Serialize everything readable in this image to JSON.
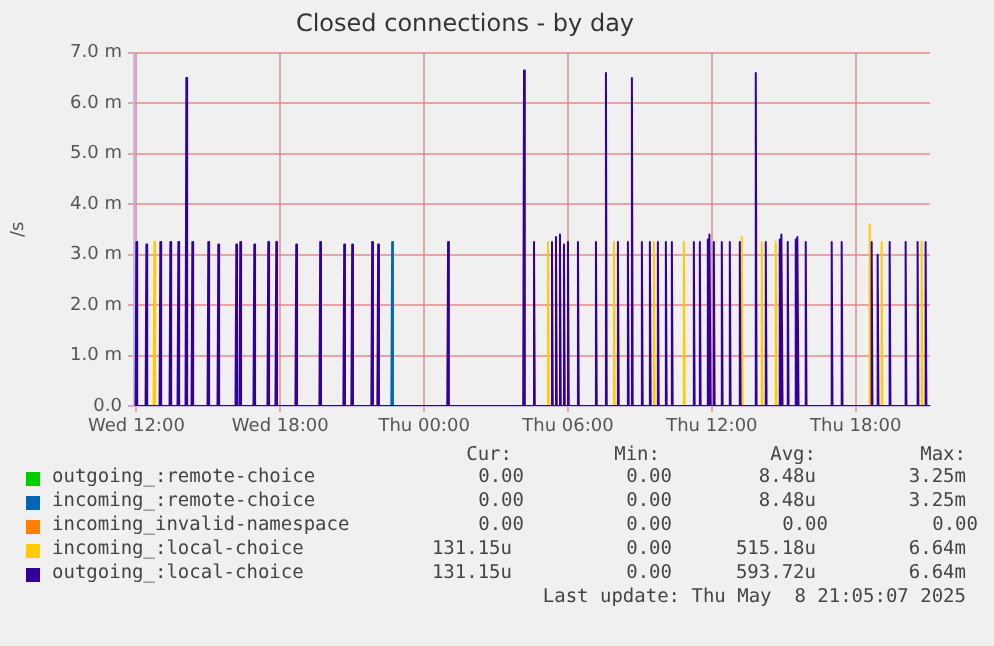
{
  "chart_data": {
    "type": "line",
    "title": "Closed connections - by day",
    "ylabel": "/s",
    "xlim": [
      "2025-05-07T11:54",
      "2025-05-08T21:06"
    ],
    "xticks": [
      {
        "value": "2025-05-07T12:00",
        "label": "Wed 12:00"
      },
      {
        "value": "2025-05-07T18:00",
        "label": "Wed 18:00"
      },
      {
        "value": "2025-05-08T00:00",
        "label": "Thu 00:00"
      },
      {
        "value": "2025-05-08T06:00",
        "label": "Thu 06:00"
      },
      {
        "value": "2025-05-08T12:00",
        "label": "Thu 12:00"
      },
      {
        "value": "2025-05-08T18:00",
        "label": "Thu 18:00"
      }
    ],
    "ylim": [
      0,
      7
    ],
    "yticks": [
      {
        "value": 0,
        "label": "0.0"
      },
      {
        "value": 1,
        "label": "1.0 m"
      },
      {
        "value": 2,
        "label": "2.0 m"
      },
      {
        "value": 3,
        "label": "3.0 m"
      },
      {
        "value": 4,
        "label": "4.0 m"
      },
      {
        "value": 5,
        "label": "5.0 m"
      },
      {
        "value": 6,
        "label": "6.0 m"
      },
      {
        "value": 7,
        "label": "7.0 m"
      }
    ],
    "grid": true,
    "legend": "bottom",
    "marker": "none",
    "line_style": "solid",
    "series": [
      {
        "name": "outgoing_:remote-choice",
        "color": "#00cc00"
      },
      {
        "name": "incoming_:remote-choice",
        "color": "#0066b3",
        "x": [
          "2025-05-07T22:38",
          "2025-05-07T22:40",
          "2025-05-07T22:42"
        ],
        "values": [
          0,
          3.25,
          0
        ]
      },
      {
        "name": "incoming_invalid-namespace",
        "color": "#ff8000"
      },
      {
        "name": "incoming_:local-choice",
        "color": "#ffcc00",
        "x": [
          "2025-05-07T11:54",
          "2025-05-07T12:43",
          "2025-05-07T12:45",
          "2025-05-07T12:47",
          "2025-05-08T05:08",
          "2025-05-08T05:10",
          "2025-05-08T05:12",
          "2025-05-08T07:53",
          "2025-05-08T07:55",
          "2025-05-08T07:57",
          "2025-05-08T09:33",
          "2025-05-08T09:35",
          "2025-05-08T09:37",
          "2025-05-08T10:48",
          "2025-05-08T10:50",
          "2025-05-08T10:52",
          "2025-05-08T13:13",
          "2025-05-08T13:15",
          "2025-05-08T13:17",
          "2025-05-08T14:03",
          "2025-05-08T14:05",
          "2025-05-08T14:07",
          "2025-05-08T14:38",
          "2025-05-08T14:40",
          "2025-05-08T14:42",
          "2025-05-08T18:33",
          "2025-05-08T18:35",
          "2025-05-08T18:37",
          "2025-05-08T19:03",
          "2025-05-08T19:05",
          "2025-05-08T19:07",
          "2025-05-08T20:43",
          "2025-05-08T20:45",
          "2025-05-08T20:47",
          "2025-05-08T21:06"
        ],
        "values": [
          0,
          0,
          3.25,
          0,
          0,
          3.25,
          0,
          0,
          3.25,
          0,
          0,
          3.25,
          0,
          0,
          3.25,
          0,
          0,
          3.35,
          0,
          0,
          3.25,
          0,
          0,
          3.25,
          0,
          0,
          3.6,
          0,
          0,
          3.25,
          0,
          0,
          3.25,
          0,
          0
        ]
      },
      {
        "name": "outgoing_:local-choice",
        "color": "#330099",
        "x": [
          "2025-05-07T11:58",
          "2025-05-07T12:00",
          "2025-05-07T12:02",
          "2025-05-07T12:23",
          "2025-05-07T12:25",
          "2025-05-07T12:27",
          "2025-05-07T12:58",
          "2025-05-07T13:00",
          "2025-05-07T13:02",
          "2025-05-07T13:23",
          "2025-05-07T13:25",
          "2025-05-07T13:27",
          "2025-05-07T13:43",
          "2025-05-07T13:45",
          "2025-05-07T13:47",
          "2025-05-07T14:03",
          "2025-05-07T14:05",
          "2025-05-07T14:07",
          "2025-05-07T14:18",
          "2025-05-07T14:20",
          "2025-05-07T14:22",
          "2025-05-07T14:58",
          "2025-05-07T15:00",
          "2025-05-07T15:02",
          "2025-05-07T15:23",
          "2025-05-07T15:25",
          "2025-05-07T15:27",
          "2025-05-07T16:08",
          "2025-05-07T16:10",
          "2025-05-07T16:12",
          "2025-05-07T16:18",
          "2025-05-07T16:20",
          "2025-05-07T16:22",
          "2025-05-07T16:53",
          "2025-05-07T16:55",
          "2025-05-07T16:57",
          "2025-05-07T17:28",
          "2025-05-07T17:30",
          "2025-05-07T17:32",
          "2025-05-07T17:48",
          "2025-05-07T17:50",
          "2025-05-07T17:52",
          "2025-05-07T18:38",
          "2025-05-07T18:40",
          "2025-05-07T18:42",
          "2025-05-07T19:38",
          "2025-05-07T19:40",
          "2025-05-07T19:42",
          "2025-05-07T20:38",
          "2025-05-07T20:40",
          "2025-05-07T20:42",
          "2025-05-07T20:58",
          "2025-05-07T21:00",
          "2025-05-07T21:02",
          "2025-05-07T21:48",
          "2025-05-07T21:50",
          "2025-05-07T21:52",
          "2025-05-07T22:03",
          "2025-05-07T22:05",
          "2025-05-07T22:07",
          "2025-05-08T00:58",
          "2025-05-08T01:00",
          "2025-05-08T01:02",
          "2025-05-08T04:08",
          "2025-05-08T04:10",
          "2025-05-08T04:12",
          "2025-05-08T04:33",
          "2025-05-08T04:35",
          "2025-05-08T04:37",
          "2025-05-08T05:18",
          "2025-05-08T05:20",
          "2025-05-08T05:22",
          "2025-05-08T05:28",
          "2025-05-08T05:30",
          "2025-05-08T05:32",
          "2025-05-08T05:38",
          "2025-05-08T05:40",
          "2025-05-08T05:42",
          "2025-05-08T05:48",
          "2025-05-08T05:50",
          "2025-05-08T05:52",
          "2025-05-08T05:58",
          "2025-05-08T06:00",
          "2025-05-08T06:02",
          "2025-05-08T06:23",
          "2025-05-08T06:25",
          "2025-05-08T06:27",
          "2025-05-08T07:08",
          "2025-05-08T07:10",
          "2025-05-08T07:12",
          "2025-05-08T07:33",
          "2025-05-08T07:35",
          "2025-05-08T07:37",
          "2025-05-08T08:03",
          "2025-05-08T08:05",
          "2025-05-08T08:07",
          "2025-05-08T08:28",
          "2025-05-08T08:30",
          "2025-05-08T08:32",
          "2025-05-08T08:38",
          "2025-05-08T08:40",
          "2025-05-08T08:42",
          "2025-05-08T09:03",
          "2025-05-08T09:05",
          "2025-05-08T09:07",
          "2025-05-08T09:23",
          "2025-05-08T09:25",
          "2025-05-08T09:27",
          "2025-05-08T09:43",
          "2025-05-08T09:45",
          "2025-05-08T09:47",
          "2025-05-08T10:03",
          "2025-05-08T10:05",
          "2025-05-08T10:07",
          "2025-05-08T10:18",
          "2025-05-08T10:20",
          "2025-05-08T10:22",
          "2025-05-08T11:13",
          "2025-05-08T11:15",
          "2025-05-08T11:17",
          "2025-05-08T11:28",
          "2025-05-08T11:30",
          "2025-05-08T11:32",
          "2025-05-08T11:48",
          "2025-05-08T11:50",
          "2025-05-08T11:52",
          "2025-05-08T11:53",
          "2025-05-08T11:55",
          "2025-05-08T11:57",
          "2025-05-08T12:03",
          "2025-05-08T12:05",
          "2025-05-08T12:07",
          "2025-05-08T12:23",
          "2025-05-08T12:25",
          "2025-05-08T12:27",
          "2025-05-08T12:43",
          "2025-05-08T12:45",
          "2025-05-08T12:47",
          "2025-05-08T13:08",
          "2025-05-08T13:10",
          "2025-05-08T13:12",
          "2025-05-08T13:48",
          "2025-05-08T13:50",
          "2025-05-08T13:52",
          "2025-05-08T14:13",
          "2025-05-08T14:15",
          "2025-05-08T14:17",
          "2025-05-08T14:48",
          "2025-05-08T14:50",
          "2025-05-08T14:52",
          "2025-05-08T14:53",
          "2025-05-08T14:55",
          "2025-05-08T14:57",
          "2025-05-08T15:08",
          "2025-05-08T15:10",
          "2025-05-08T15:12",
          "2025-05-08T15:28",
          "2025-05-08T15:30",
          "2025-05-08T15:32",
          "2025-05-08T15:33",
          "2025-05-08T15:35",
          "2025-05-08T15:37",
          "2025-05-08T15:53",
          "2025-05-08T15:55",
          "2025-05-08T15:57",
          "2025-05-08T16:58",
          "2025-05-08T17:00",
          "2025-05-08T17:02",
          "2025-05-08T17:23",
          "2025-05-08T17:25",
          "2025-05-08T17:27",
          "2025-05-08T18:38",
          "2025-05-08T18:40",
          "2025-05-08T18:42",
          "2025-05-08T18:53",
          "2025-05-08T18:55",
          "2025-05-08T18:57",
          "2025-05-08T19:23",
          "2025-05-08T19:25",
          "2025-05-08T19:27",
          "2025-05-08T20:03",
          "2025-05-08T20:05",
          "2025-05-08T20:07",
          "2025-05-08T20:33",
          "2025-05-08T20:35",
          "2025-05-08T20:37",
          "2025-05-08T20:53",
          "2025-05-08T20:55",
          "2025-05-08T20:57",
          "2025-05-08T21:06"
        ],
        "values": [
          0,
          3.25,
          0,
          0,
          3.2,
          0,
          0,
          3.25,
          0,
          0,
          3.25,
          0,
          0,
          3.25,
          0,
          0,
          6.5,
          0,
          0,
          3.25,
          0,
          0,
          3.25,
          0,
          0,
          3.2,
          0,
          0,
          3.2,
          0,
          0,
          3.25,
          0,
          0,
          3.2,
          0,
          0,
          3.25,
          0,
          0,
          3.25,
          0,
          0,
          3.2,
          0,
          0,
          3.25,
          0,
          0,
          3.2,
          0,
          0,
          3.2,
          0,
          0,
          3.25,
          0,
          0,
          3.2,
          0,
          0,
          3.25,
          0,
          0,
          6.65,
          0,
          0,
          3.25,
          0,
          0,
          3.25,
          0,
          0,
          3.35,
          0,
          0,
          3.4,
          0,
          0,
          3.2,
          0,
          0,
          3.25,
          0,
          0,
          3.25,
          0,
          0,
          3.25,
          0,
          0,
          6.6,
          0,
          0,
          3.25,
          0,
          0,
          3.25,
          0,
          0,
          6.5,
          0,
          0,
          3.25,
          0,
          0,
          3.25,
          0,
          0,
          3.25,
          0,
          0,
          3.25,
          0,
          0,
          3.25,
          0,
          0,
          3.25,
          0,
          0,
          3.25,
          0,
          0,
          3.3,
          0,
          0,
          3.4,
          0,
          0,
          3.25,
          0,
          0,
          3.25,
          0,
          0,
          3.25,
          0,
          0,
          3.25,
          0,
          0,
          6.6,
          0,
          0,
          3.25,
          0,
          0,
          3.3,
          0,
          0,
          3.4,
          0,
          0,
          3.25,
          0,
          0,
          3.3,
          0,
          0,
          3.35,
          0,
          0,
          3.25,
          0,
          0,
          3.25,
          0,
          0,
          3.25,
          0,
          0,
          3.25,
          0,
          0,
          3.0,
          0,
          0,
          3.25,
          0,
          0,
          3.25,
          0,
          0,
          3.25,
          0,
          0,
          3.25,
          0,
          0
        ]
      }
    ],
    "annotations": [
      "Cur:",
      "Min:",
      "Avg:",
      "Max:",
      "0.00",
      "0.00",
      "8.48u",
      "3.25m",
      "0.00",
      "0.00",
      "8.48u",
      "3.25m",
      "0.00",
      "0.00",
      "0.00",
      "0.00",
      "131.15u",
      "0.00",
      "515.18u",
      "6.64m",
      "131.15u",
      "0.00",
      "593.72u",
      "6.64m",
      "Last update: Thu May  8 21:05:07 2025"
    ]
  }
}
